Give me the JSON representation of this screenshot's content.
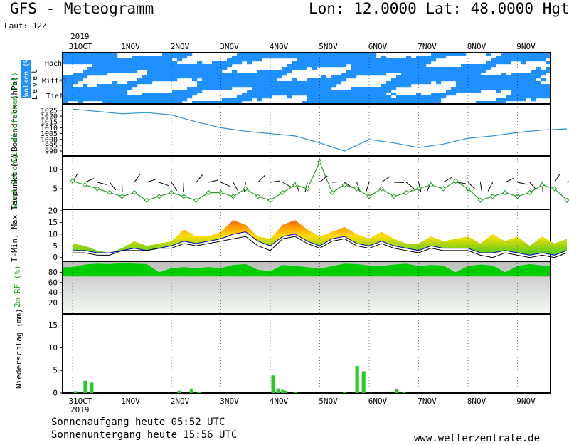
{
  "header": {
    "title": "GFS - Meteogramm",
    "coords": "Lon: 12.0000 Lat: 48.0000 Hgt: 5",
    "run": "Lauf: 12Z"
  },
  "footer": {
    "sunrise": "Sonnenaufgang heute 05:52 UTC",
    "sunset": "Sonnenuntergang heute 15:56 UTC",
    "website": "www.wetterzentrale.de"
  },
  "x_axis": {
    "year": "2019",
    "labels": [
      "31OCT",
      "1NOV",
      "2NOV",
      "3NOV",
      "4NOV",
      "5NOV",
      "6NOV",
      "7NOV",
      "8NOV",
      "9NOV"
    ]
  },
  "colors": {
    "cloud": "#1e90ff",
    "pressure_line": "#2a90d8",
    "wind_speed": "#22a022",
    "tmin": "#0000cc",
    "tmax": "#ff0000",
    "humidity": "#00cc00",
    "precip": "#22cc22"
  },
  "chart_data": [
    {
      "type": "heatmap",
      "title": "Wolken (%)",
      "ylabel": "Level",
      "rows": [
        "Hoch",
        "Mittel",
        "Tief"
      ]
    },
    {
      "type": "line",
      "ylabel": "Bodendruck (hPa)",
      "yticks": [
        990,
        995,
        1000,
        1005,
        1010,
        1015,
        1020,
        1025
      ],
      "ylim": [
        987,
        1028
      ],
      "x": [
        0,
        0.5,
        1,
        1.5,
        2,
        2.5,
        3,
        3.5,
        4,
        4.5,
        5,
        5.5,
        6,
        6.5,
        7,
        7.5,
        8,
        8.5,
        9,
        9.5,
        10
      ],
      "values": [
        1026,
        1024,
        1022,
        1023,
        1021,
        1015,
        1010,
        1007,
        1005,
        1003,
        997,
        990,
        1000,
        997,
        993,
        996,
        1001,
        1003,
        1006,
        1008,
        1009
      ]
    },
    {
      "type": "line",
      "ylabel": "Wind Geschwi. Windfahnen (kt)",
      "yticks": [
        5,
        10
      ],
      "ylim": [
        0,
        13
      ],
      "x": [
        0,
        0.25,
        0.5,
        0.75,
        1,
        1.25,
        1.5,
        1.75,
        2,
        2.25,
        2.5,
        2.75,
        3,
        3.25,
        3.5,
        3.75,
        4,
        4.25,
        4.5,
        4.75,
        5,
        5.25,
        5.5,
        5.75,
        6,
        6.25,
        6.5,
        6.75,
        7,
        7.25,
        7.5,
        7.75,
        8,
        8.25,
        8.5,
        8.75,
        9,
        9.25,
        9.5,
        9.75,
        10
      ],
      "values": [
        7,
        6,
        5,
        4,
        3,
        4,
        2,
        3,
        4,
        3,
        2,
        4,
        4,
        3,
        5,
        3,
        2,
        4,
        6,
        5,
        12,
        4,
        6,
        5,
        3,
        5,
        3,
        4,
        5,
        6,
        5,
        7,
        5,
        2,
        3,
        4,
        3,
        4,
        6,
        5,
        2
      ]
    },
    {
      "type": "area",
      "ylabel": "T-Min, Max Taupunkt (C)",
      "yticks": [
        0,
        5,
        10,
        15,
        20
      ],
      "ylim": [
        -1,
        20
      ],
      "x": [
        0,
        0.25,
        0.5,
        0.75,
        1,
        1.25,
        1.5,
        1.75,
        2,
        2.25,
        2.5,
        2.75,
        3,
        3.25,
        3.5,
        3.75,
        4,
        4.25,
        4.5,
        4.75,
        5,
        5.25,
        5.5,
        5.75,
        6,
        6.25,
        6.5,
        6.75,
        7,
        7.25,
        7.5,
        7.75,
        8,
        8.25,
        8.5,
        8.75,
        9,
        9.25,
        9.5,
        9.75,
        10
      ],
      "series": [
        {
          "name": "T-Max",
          "values": [
            6,
            5,
            3,
            2,
            4,
            7,
            5,
            6,
            7,
            12,
            9,
            9,
            11,
            16,
            14,
            9,
            8,
            14,
            16,
            12,
            9,
            11,
            13,
            10,
            8,
            11,
            8,
            6,
            6,
            9,
            7,
            8,
            9,
            6,
            10,
            7,
            9,
            5,
            9,
            6,
            8
          ]
        },
        {
          "name": "T-Min",
          "values": [
            3,
            3,
            2,
            2,
            3,
            4,
            3,
            4,
            5,
            7,
            6,
            7,
            8,
            10,
            11,
            7,
            5,
            9,
            10,
            7,
            5,
            8,
            9,
            6,
            5,
            7,
            5,
            4,
            3,
            5,
            4,
            4,
            4,
            2,
            2,
            3,
            2,
            1,
            2,
            1,
            3
          ]
        },
        {
          "name": "Taupunkt",
          "values": [
            2,
            2,
            1,
            1,
            3,
            3,
            3,
            4,
            4,
            6,
            5,
            6,
            7,
            8,
            9,
            5,
            3,
            8,
            9,
            6,
            4,
            7,
            8,
            5,
            4,
            6,
            4,
            3,
            2,
            4,
            3,
            3,
            3,
            1,
            0,
            2,
            1,
            0,
            1,
            0,
            2
          ]
        }
      ]
    },
    {
      "type": "area",
      "ylabel": "2m RF (%)",
      "yticks": [
        20,
        40,
        60,
        80
      ],
      "ylim": [
        0,
        100
      ],
      "x": [
        0,
        0.25,
        0.5,
        0.75,
        1,
        1.25,
        1.5,
        1.75,
        2,
        2.25,
        2.5,
        2.75,
        3,
        3.25,
        3.5,
        3.75,
        4,
        4.25,
        4.5,
        4.75,
        5,
        5.25,
        5.5,
        5.75,
        6,
        6.25,
        6.5,
        6.75,
        7,
        7.25,
        7.5,
        7.75,
        8,
        8.25,
        8.5,
        8.75,
        9,
        9.25,
        9.5,
        9.75,
        10
      ],
      "values": [
        90,
        95,
        97,
        96,
        98,
        97,
        96,
        80,
        88,
        90,
        88,
        90,
        88,
        94,
        96,
        85,
        82,
        94,
        92,
        90,
        87,
        92,
        97,
        96,
        93,
        92,
        95,
        97,
        92,
        94,
        93,
        80,
        92,
        95,
        93,
        80,
        92,
        96,
        93,
        92,
        78
      ]
    },
    {
      "type": "bar",
      "ylabel": "Niederschlag (mm)",
      "yticks": [
        0,
        5,
        10,
        15
      ],
      "ylim": [
        0,
        17
      ],
      "x": [
        0.05,
        0.25,
        0.38,
        2.15,
        2.4,
        2.55,
        4.05,
        4.15,
        4.25,
        4.3,
        4.5,
        5.5,
        5.75,
        5.88,
        6.55,
        6.7
      ],
      "values": [
        0.4,
        2.7,
        2.3,
        0.5,
        0.9,
        0.3,
        3.9,
        1.0,
        0.7,
        0.5,
        0.3,
        0.3,
        6.0,
        4.8,
        0.9,
        0.2
      ]
    }
  ]
}
